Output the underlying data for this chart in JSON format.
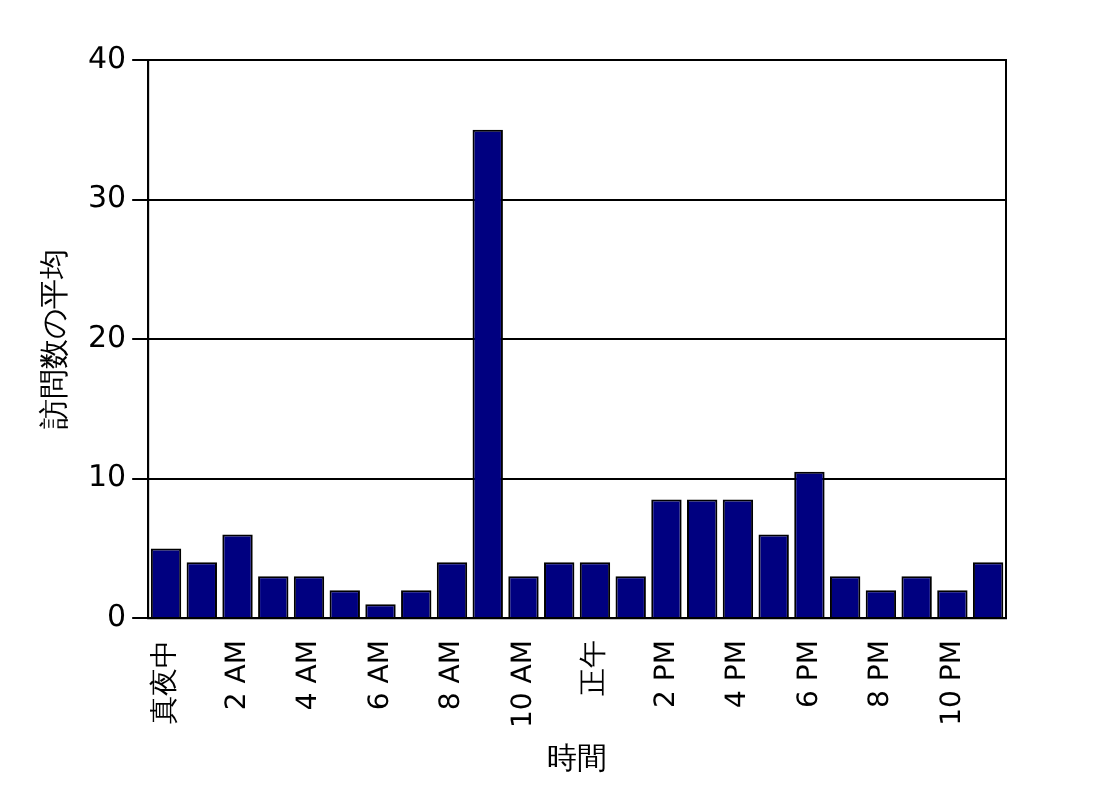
{
  "chart_data": {
    "type": "bar",
    "xlabel": "時間",
    "ylabel": "訪問数の平均",
    "categories": [
      "真夜中",
      null,
      "2 AM",
      null,
      "4 AM",
      null,
      "6 AM",
      null,
      "8 AM",
      null,
      "10 AM",
      null,
      "正午",
      null,
      "2 PM",
      null,
      "4 PM",
      null,
      "6 PM",
      null,
      "8 PM",
      null,
      "10 PM",
      null
    ],
    "values": [
      5,
      4,
      6,
      3,
      3,
      2,
      1,
      2,
      4,
      35,
      3,
      4,
      4,
      3,
      8.5,
      8.5,
      8.5,
      6,
      10.5,
      3,
      2,
      3,
      2,
      4
    ],
    "color": "#000080",
    "ylim": [
      0,
      40
    ],
    "yticks": [
      0,
      10,
      20,
      30,
      40
    ],
    "grid": "y"
  }
}
